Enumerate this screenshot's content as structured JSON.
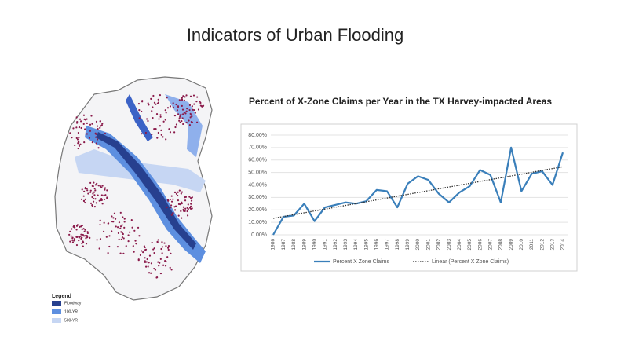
{
  "header": {
    "title": "Indicators of Urban Flooding"
  },
  "map": {
    "legend": {
      "title": "Legend",
      "items": [
        "Floodway",
        "100-YR",
        "500-YR"
      ]
    }
  },
  "chart_data": {
    "type": "line",
    "title": "Percent of X-Zone Claims per Year in the TX Harvey-impacted Areas",
    "categories": [
      "1986",
      "1987",
      "1988",
      "1989",
      "1990",
      "1991",
      "1992",
      "1993",
      "1994",
      "1995",
      "1996",
      "1997",
      "1998",
      "1999",
      "2000",
      "2001",
      "2002",
      "2003",
      "2004",
      "2005",
      "2006",
      "2007",
      "2008",
      "2009",
      "2010",
      "2011",
      "2012",
      "2013",
      "2014"
    ],
    "series": [
      {
        "name": "Percent X Zone Claims",
        "color": "#3a7fba",
        "values": [
          0,
          14.5,
          15.5,
          25,
          11,
          22,
          24,
          26,
          25,
          27,
          36,
          35,
          22,
          41,
          47,
          44,
          33,
          26,
          34,
          39,
          52,
          48,
          26,
          70,
          35,
          49,
          51,
          40,
          66
        ]
      },
      {
        "name": "Linear (Percent X Zone Claims)",
        "color": "#333333",
        "trendline": true
      }
    ],
    "ylim": [
      0,
      80
    ],
    "yticks": [
      {
        "value": 0,
        "label": "0.00%"
      },
      {
        "value": 10,
        "label": "10.00%"
      },
      {
        "value": 20,
        "label": "20.00%"
      },
      {
        "value": 30,
        "label": "30.00%"
      },
      {
        "value": 40,
        "label": "40.00%"
      },
      {
        "value": 50,
        "label": "50.00%"
      },
      {
        "value": 60,
        "label": "60.00%"
      },
      {
        "value": 70,
        "label": "70.00%"
      },
      {
        "value": 80,
        "label": "80.00%"
      }
    ],
    "grid": true,
    "legend": "bottom"
  }
}
